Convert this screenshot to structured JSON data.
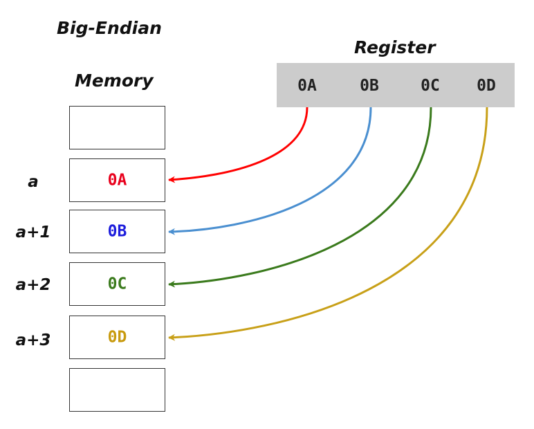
{
  "diagram": {
    "title": "Big-Endian",
    "memory_title": "Memory",
    "register_title": "Register"
  },
  "register": {
    "bytes": [
      "0A",
      "0B",
      "0C",
      "0D"
    ]
  },
  "memory": {
    "cells": [
      {
        "address": "",
        "value": ""
      },
      {
        "address": "a",
        "value": "0A",
        "color": "#e8001c"
      },
      {
        "address": "a+1",
        "value": "0B",
        "color": "#1c1cdc"
      },
      {
        "address": "a+2",
        "value": "0C",
        "color": "#3a7a1c"
      },
      {
        "address": "a+3",
        "value": "0D",
        "color": "#c89a0e"
      },
      {
        "address": "",
        "value": ""
      }
    ]
  },
  "arrows": [
    {
      "from": "0A",
      "to": "a",
      "color": "#ff0000"
    },
    {
      "from": "0B",
      "to": "a+1",
      "color": "#4a8fd0"
    },
    {
      "from": "0C",
      "to": "a+2",
      "color": "#3a7a1c"
    },
    {
      "from": "0D",
      "to": "a+3",
      "color": "#c8a018"
    }
  ]
}
